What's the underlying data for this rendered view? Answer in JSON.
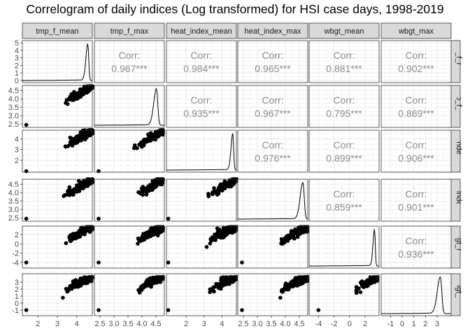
{
  "title": "Correlogram of daily indices (Log transformed) for HSI case days, 1998-2019",
  "chart_data": {
    "type": "scatter-matrix",
    "title": "Correlogram of daily indices (Log transformed) for HSI case days, 1998-2019",
    "variables": [
      "tmp_f_mean",
      "tmp_f_max",
      "heat_index_mean",
      "heat_index_max",
      "wbgt_mean",
      "wbgt_max"
    ],
    "row_strip_labels": [
      "tmp_f_mean",
      "tmp_f_max",
      "heat_index_mean",
      "heat_index_max",
      "wbgt_mean",
      "wbgt_max"
    ],
    "row_strip_visible": [
      "mp_f_mean",
      "tmp_f_max",
      "t_index_m",
      "at_index_m",
      "wbgt_mear",
      "wbgt_max"
    ],
    "column_strip_visible": [
      "tmp_f_mean",
      "tmp_f_max",
      "heat_index_mean",
      "heat_index_max",
      "wbgt_mean",
      "wbgt_max"
    ],
    "corr_label": "Corr:",
    "correlations": [
      {
        "row": 0,
        "col": 1,
        "value": "0.967***"
      },
      {
        "row": 0,
        "col": 2,
        "value": "0.984***"
      },
      {
        "row": 0,
        "col": 3,
        "value": "0.965***"
      },
      {
        "row": 0,
        "col": 4,
        "value": "0.881***"
      },
      {
        "row": 0,
        "col": 5,
        "value": "0.902***"
      },
      {
        "row": 1,
        "col": 2,
        "value": "0.935***"
      },
      {
        "row": 1,
        "col": 3,
        "value": "0.967***"
      },
      {
        "row": 1,
        "col": 4,
        "value": "0.795***"
      },
      {
        "row": 1,
        "col": 5,
        "value": "0.869***"
      },
      {
        "row": 2,
        "col": 3,
        "value": "0.976***"
      },
      {
        "row": 2,
        "col": 4,
        "value": "0.899***"
      },
      {
        "row": 2,
        "col": 5,
        "value": "0.906***"
      },
      {
        "row": 3,
        "col": 4,
        "value": "0.859***"
      },
      {
        "row": 3,
        "col": 5,
        "value": "0.901***"
      },
      {
        "row": 4,
        "col": 5,
        "value": "0.936***"
      }
    ],
    "x_axes": [
      {
        "range": [
          1.2,
          4.8
        ],
        "ticks": [
          "2",
          "3",
          "4"
        ]
      },
      {
        "range": [
          2.3,
          4.8
        ],
        "ticks": [
          "2.5",
          "3.0",
          "3.5",
          "4.0",
          "4.5"
        ]
      },
      {
        "range": [
          0.9,
          4.8
        ],
        "ticks": [
          "2",
          "3",
          "4"
        ]
      },
      {
        "range": [
          2.3,
          4.8
        ],
        "ticks": [
          "2.5",
          "3.0",
          "3.5",
          "4.0",
          "4.5"
        ]
      },
      {
        "range": [
          -5.2,
          3.8
        ],
        "ticks": [
          "-4",
          "-2",
          "0",
          "2"
        ]
      },
      {
        "range": [
          -1.8,
          4.2
        ],
        "ticks": [
          "-1",
          "0",
          "1",
          "2",
          "3"
        ]
      }
    ],
    "y_axes": [
      {
        "range": [
          -0.3,
          5.3
        ],
        "ticks": [
          "0",
          "1",
          "2",
          "3",
          "4",
          "5"
        ]
      },
      {
        "range": [
          2.3,
          4.8
        ],
        "ticks": [
          "2.5",
          "3.0",
          "3.5",
          "4.0",
          "4.5"
        ]
      },
      {
        "range": [
          0.9,
          4.8
        ],
        "ticks": [
          "2",
          "3",
          "4"
        ]
      },
      {
        "range": [
          2.3,
          4.8
        ],
        "ticks": [
          "2.5",
          "3.0",
          "3.5",
          "4.0",
          "4.5"
        ]
      },
      {
        "range": [
          -5.2,
          3.8
        ],
        "ticks": [
          "-4",
          "-2",
          "0",
          "2"
        ]
      },
      {
        "range": [
          -1.8,
          4.2
        ],
        "ticks": [
          "-1",
          "0",
          "1",
          "2",
          "3"
        ]
      }
    ],
    "density_peaks": [
      4.57,
      4.52,
      4.6,
      4.63,
      3.22,
      3.28
    ],
    "minima": [
      1.4,
      2.45,
      1.0,
      2.45,
      -4.0,
      -1.0
    ],
    "upper": [
      4.8,
      4.75,
      4.8,
      4.8,
      3.6,
      3.7
    ],
    "grid": true,
    "panel_layout": "lower: scatter, diagonal: density, upper: correlation"
  }
}
